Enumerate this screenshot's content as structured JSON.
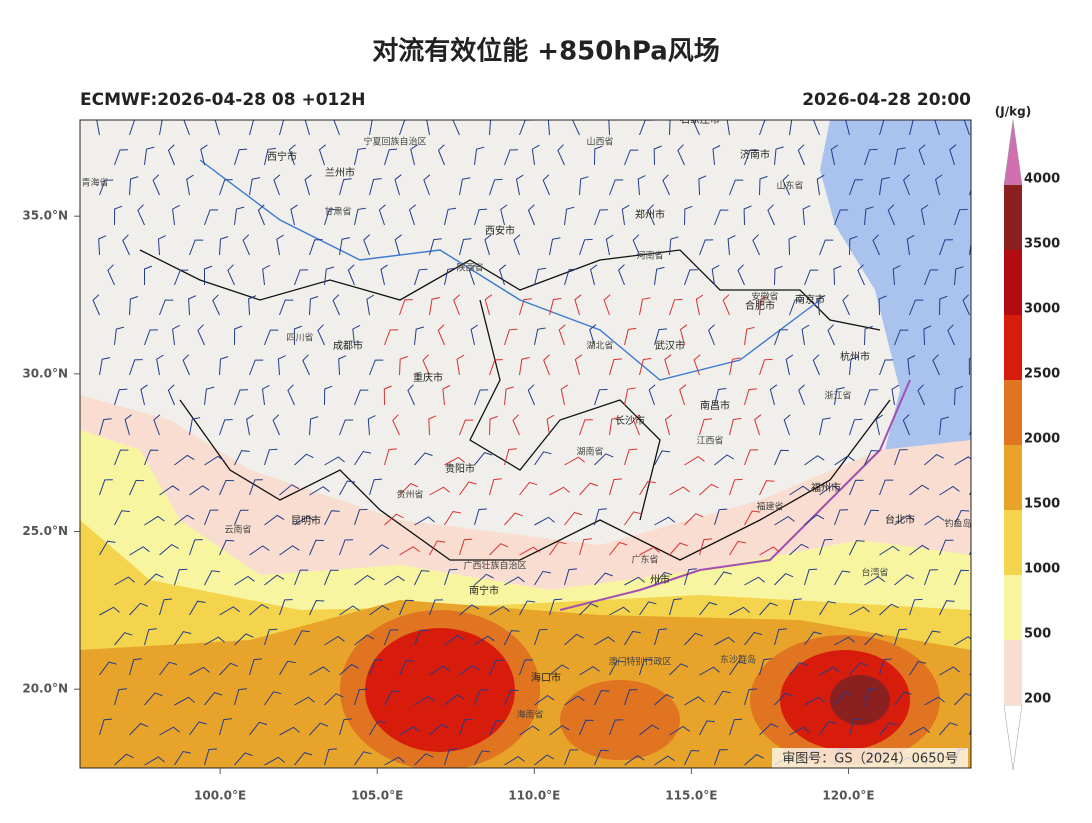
{
  "map": {
    "title": "对流有效位能 +850hPa风场",
    "subtitle_left": "ECMWF:2026-04-28 08 +012H",
    "subtitle_right": "2026-04-28 20:00",
    "xlim": [
      95.54,
      123.9
    ],
    "ylim": [
      17.5,
      38.05
    ],
    "xticks": [
      {
        "value": 100,
        "label": "100.0°E"
      },
      {
        "value": 105,
        "label": "105.0°E"
      },
      {
        "value": 110,
        "label": "110.0°E"
      },
      {
        "value": 115,
        "label": "115.0°E"
      },
      {
        "value": 120,
        "label": "120.0°E"
      }
    ],
    "yticks": [
      {
        "value": 20,
        "label": "20.0°N"
      },
      {
        "value": 25,
        "label": "25.0°N"
      },
      {
        "value": 30,
        "label": "30.0°N"
      },
      {
        "value": 35,
        "label": "35.0°N"
      }
    ],
    "colorbar": {
      "unit": "(J/kg)",
      "levels": [
        200,
        500,
        1000,
        1500,
        2000,
        2500,
        3000,
        3500,
        4000
      ],
      "colors": [
        "#f9ddd0",
        "#f8f5a0",
        "#f4d44c",
        "#e8a42a",
        "#e07420",
        "#d81c0c",
        "#b20c10",
        "#8a2020"
      ],
      "over_color": "#d070b0"
    },
    "places": [
      "西宁市",
      "兰州市",
      "西安市",
      "郑州市",
      "济南市",
      "石家庄市",
      "合肥市",
      "南京市",
      "杭州市",
      "武汉市",
      "长沙市",
      "南昌市",
      "重庆市",
      "成都市",
      "贵阳市",
      "昆明市",
      "南宁市",
      "福州市",
      "台北市",
      "州市",
      "海口市",
      "青海省",
      "甘肃省",
      "宁夏回族自治区",
      "陕西省",
      "山西省",
      "河南省",
      "山东省",
      "安徽省",
      "湖北省",
      "四川省",
      "湖南省",
      "江西省",
      "浙江省",
      "贵州省",
      "云南省",
      "福建省",
      "广东省",
      "广西壮族自治区",
      "台湾省",
      "海南省",
      "钓鱼岛",
      "澳门特别行政区",
      "东沙群岛"
    ],
    "approval": "审图号：GS（2024）0650号"
  }
}
